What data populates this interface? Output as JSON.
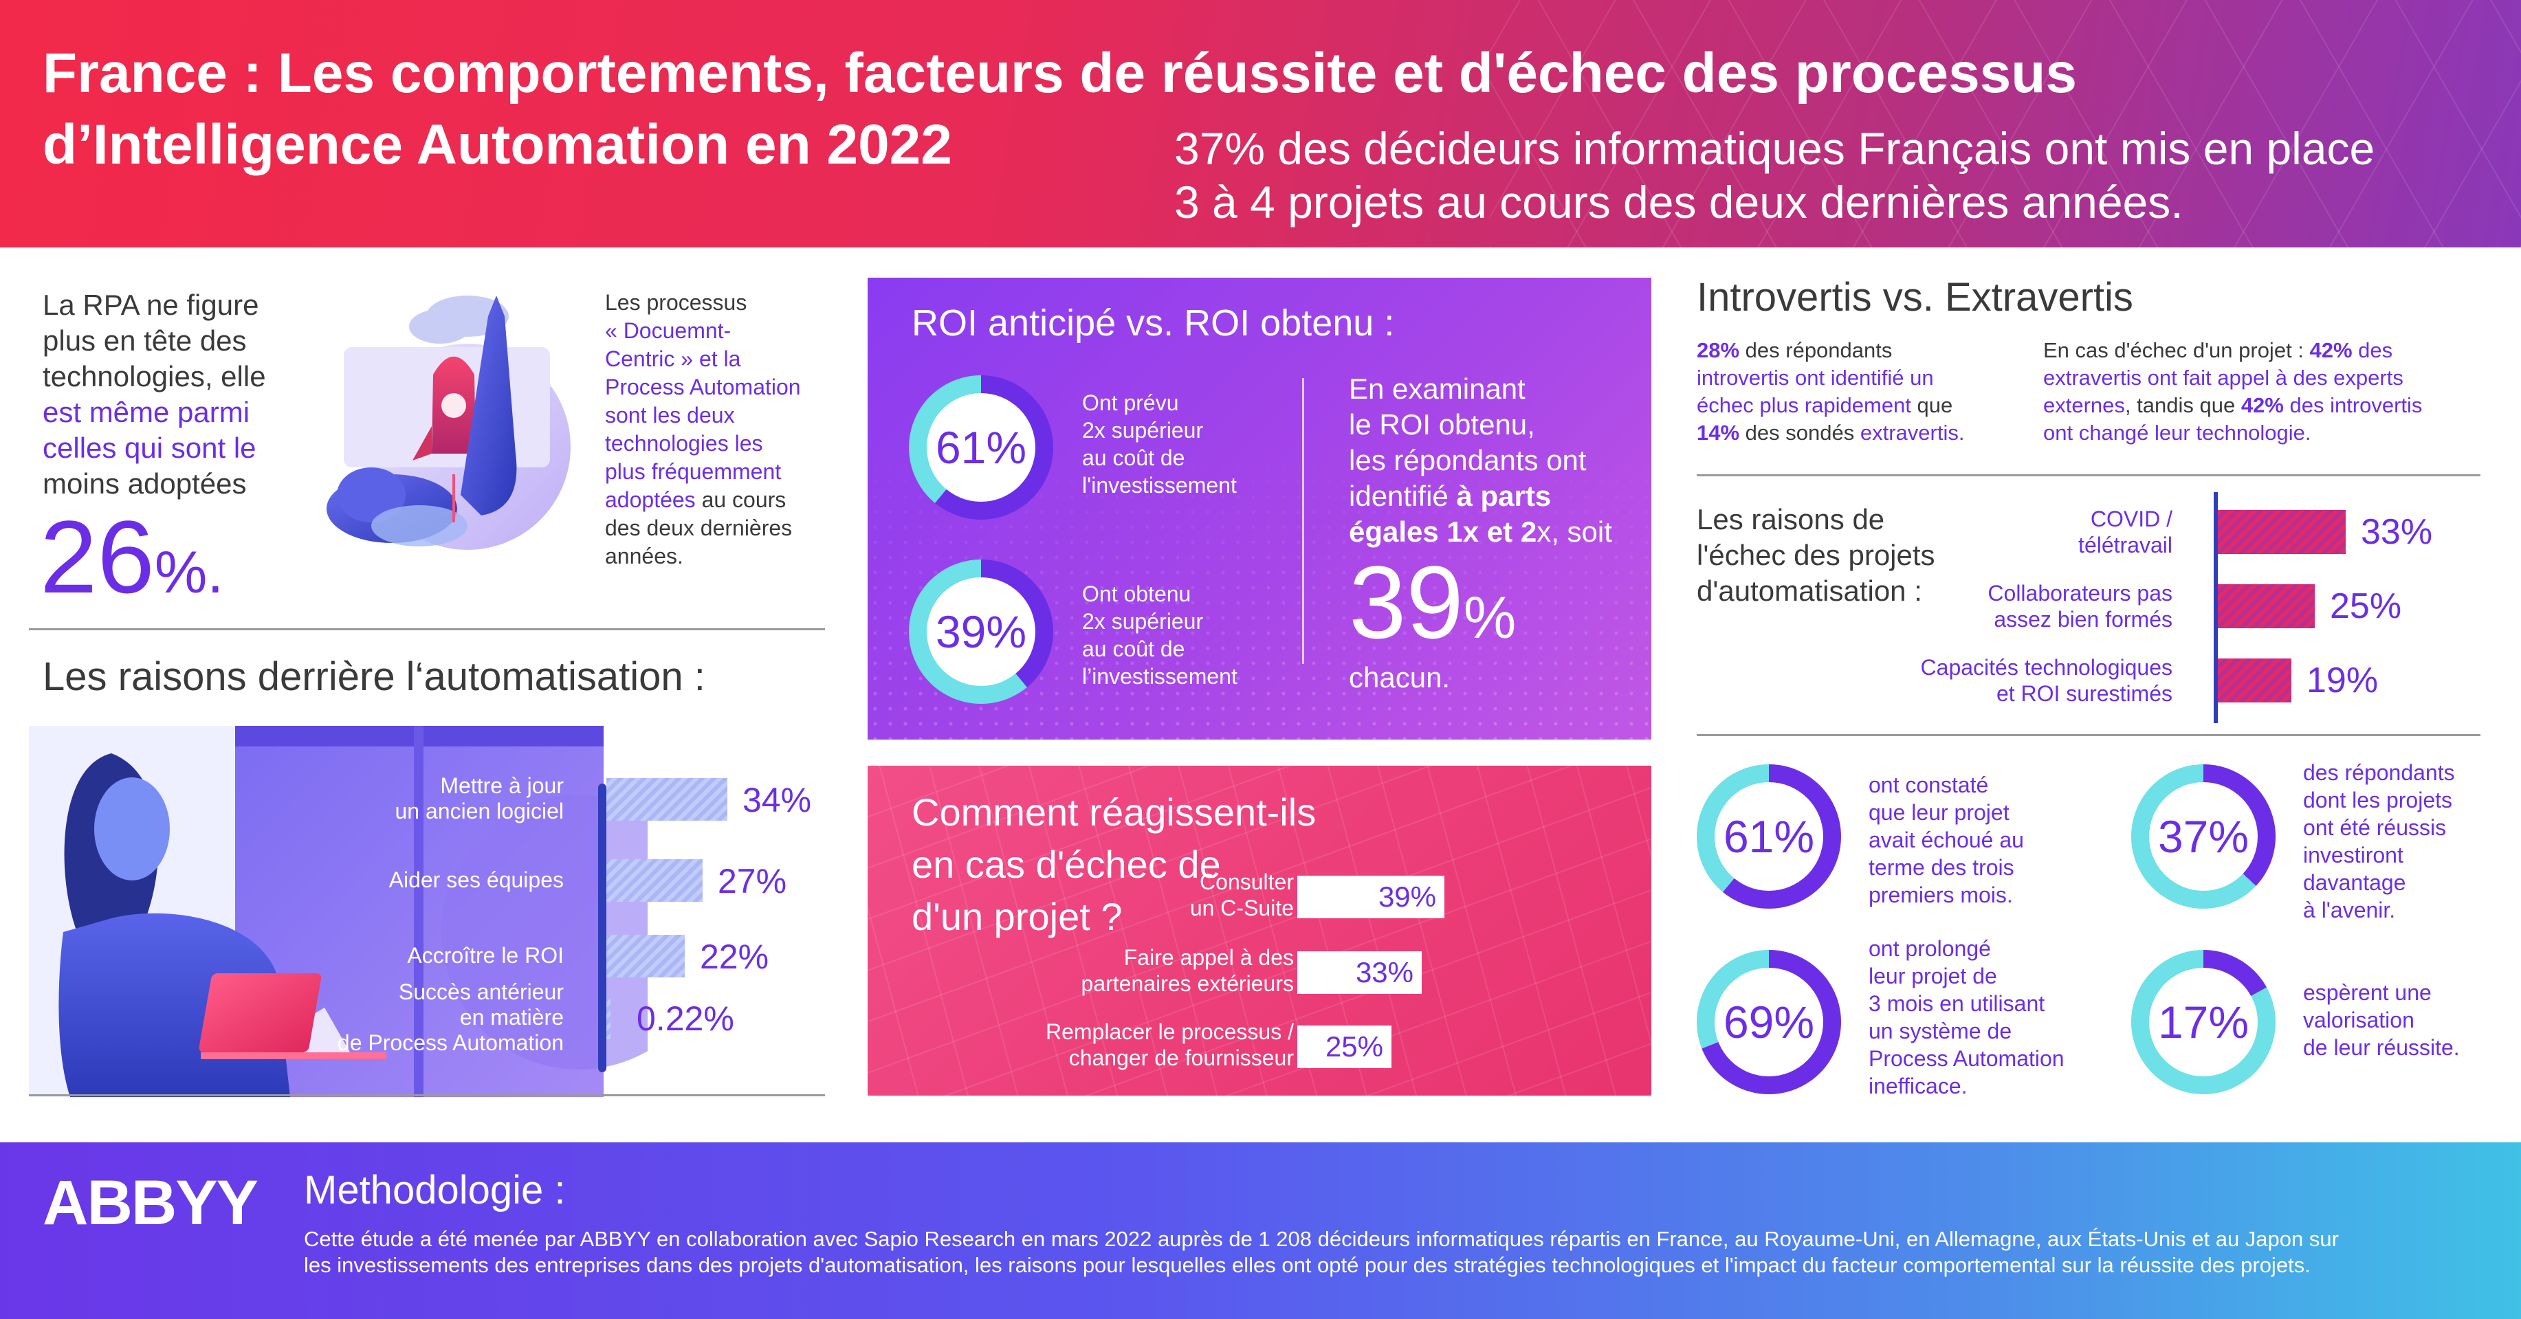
{
  "header": {
    "title_line1": "France : Les comportements, facteurs de réussite et d'échec des processus",
    "title_line2": "d’Intelligence Automation en 2022",
    "stat_line1": "37% des décideurs informatiques Français ont mis en place",
    "stat_line2": "3 à 4 projets au cours des deux dernières années."
  },
  "rpa": {
    "line1": "La RPA ne figure",
    "line2": "plus en tête des",
    "line3": "technologies, elle",
    "hl1": "est même parmi",
    "hl2": "celles qui sont le",
    "line6": "moins adoptées",
    "big_value": "26",
    "big_unit": "%."
  },
  "processus": {
    "l1": "Les processus",
    "l2": "« Docuemnt-",
    "l3": "Centric » et la",
    "l4": "Process Automation",
    "l5": "sont les deux",
    "l6": "technologies les",
    "l7": "plus fréquemment",
    "l8a": "adoptées",
    "l8b": " au cours",
    "l9": "des deux dernières",
    "l10": "années."
  },
  "reasons": {
    "title": "Les raisons derrière l‘automatisation :",
    "items": [
      {
        "l1": "Mettre à jour",
        "l2": "un ancien logiciel",
        "value": "34%",
        "fraction": 0.34
      },
      {
        "l1": "Aider ses équipes",
        "l2": "",
        "value": "27%",
        "fraction": 0.27
      },
      {
        "l1": "Accroître le ROI",
        "l2": "",
        "value": "22%",
        "fraction": 0.22
      },
      {
        "l1": "Succès antérieur",
        "l2": "en matière",
        "l3": "de Process Automation",
        "value": "0.22%",
        "fraction": 0.0022
      }
    ]
  },
  "roi": {
    "title": "ROI anticipé vs. ROI obtenu :",
    "d1": {
      "value": "61%",
      "fraction": 0.61,
      "l1": "Ont prévu",
      "l2": "2x supérieur",
      "l3": "au coût de",
      "l4": "l'investissement"
    },
    "d2": {
      "value": "39%",
      "fraction": 0.39,
      "l1": "Ont obtenu",
      "l2": "2x supérieur",
      "l3": "au coût de",
      "l4": "l’investissement"
    },
    "right_l1": "En examinant",
    "right_l2": "le ROI obtenu,",
    "right_l3": "les répondants ont",
    "right_l4a": "identifié ",
    "right_l4b": "à parts",
    "right_l5a": "égales 1x et 2",
    "right_l5b": "x, soit",
    "big_value": "39",
    "big_unit": "%",
    "chacun": "chacun."
  },
  "fail_reaction": {
    "title_l1": "Comment réagissent-ils",
    "title_l2": "en cas d'échec de",
    "title_l3": "d'un projet ?",
    "items": [
      {
        "l1": "Consulter",
        "l2": "un C-Suite",
        "value": "39%",
        "fraction": 0.39
      },
      {
        "l1": "Faire appel à des",
        "l2": "partenaires extérieurs",
        "value": "33%",
        "fraction": 0.33
      },
      {
        "l1": "Remplacer le processus /",
        "l2": "changer de fournisseur",
        "value": "25%",
        "fraction": 0.25
      }
    ]
  },
  "introvert": {
    "title": "Introvertis vs. Extravertis",
    "left": {
      "p1": "28%",
      "t1": " des répondants",
      "t2": "introvertis ont identifié un",
      "t3a": "échec plus rapidement",
      "t3b": " que",
      "p2": "14%",
      "t4": " des sondés ",
      "t4b": "extravertis."
    },
    "right": {
      "t1": "En cas d'échec d'un projet : ",
      "p1": "42%",
      "t1b": " des",
      "t2a": "extravertis",
      "t2b": " ont fait appel à des experts",
      "t3a": "externes",
      "t3b": ", tandis que ",
      "p2": "42%",
      "t3c": " des introvertis",
      "t4": "ont changé leur technologie."
    }
  },
  "failure_reasons": {
    "label_l1": "Les raisons de",
    "label_l2": "l'échec des projets",
    "label_l3": "d'automatisation :",
    "items": [
      {
        "l1": "COVID /",
        "l2": "télétravail",
        "value": "33%",
        "fraction": 0.33
      },
      {
        "l1": "Collaborateurs pas",
        "l2": "assez bien formés",
        "value": "25%",
        "fraction": 0.25
      },
      {
        "l1": "Capacités technologiques",
        "l2": "et ROI surestimés",
        "value": "19%",
        "fraction": 0.19
      }
    ]
  },
  "stats": {
    "s1": {
      "value": "61%",
      "fraction": 0.61,
      "lines": [
        "ont constaté",
        "que leur projet",
        "avait échoué au",
        "terme des trois",
        "premiers mois."
      ]
    },
    "s2": {
      "value": "37%",
      "fraction": 0.37,
      "lines": [
        "des répondants",
        "dont les projets",
        "ont été réussis",
        "investiront",
        "davantage",
        "à l'avenir."
      ]
    },
    "s3": {
      "value": "69%",
      "fraction": 0.69,
      "lines": [
        "ont prolongé",
        "leur projet de",
        "3 mois en utilisant",
        "un système de",
        "Process Automation",
        "inefficace."
      ]
    },
    "s4": {
      "value": "17%",
      "fraction": 0.17,
      "lines": [
        "espèrent une",
        "valorisation",
        "de leur réussite."
      ]
    }
  },
  "footer": {
    "logo": "ABBYY",
    "title": "Methodologie :",
    "line1": "Cette étude a été menée par ABBYY en collaboration avec Sapio Research en mars 2022 auprès de 1 208 décideurs informatiques répartis en France, au Royaume-Uni, en Allemagne, aux États-Unis et au Japon sur",
    "line2": "les investissements des entreprises dans des projets d'automatisation, les raisons pour lesquelles elles ont opté pour des stratégies technologiques et l'impact du facteur comportemental sur la réussite des projets."
  },
  "colors": {
    "purple": "#6b2ee6",
    "cyan": "#6de0e8",
    "pink": "#e8346f"
  }
}
